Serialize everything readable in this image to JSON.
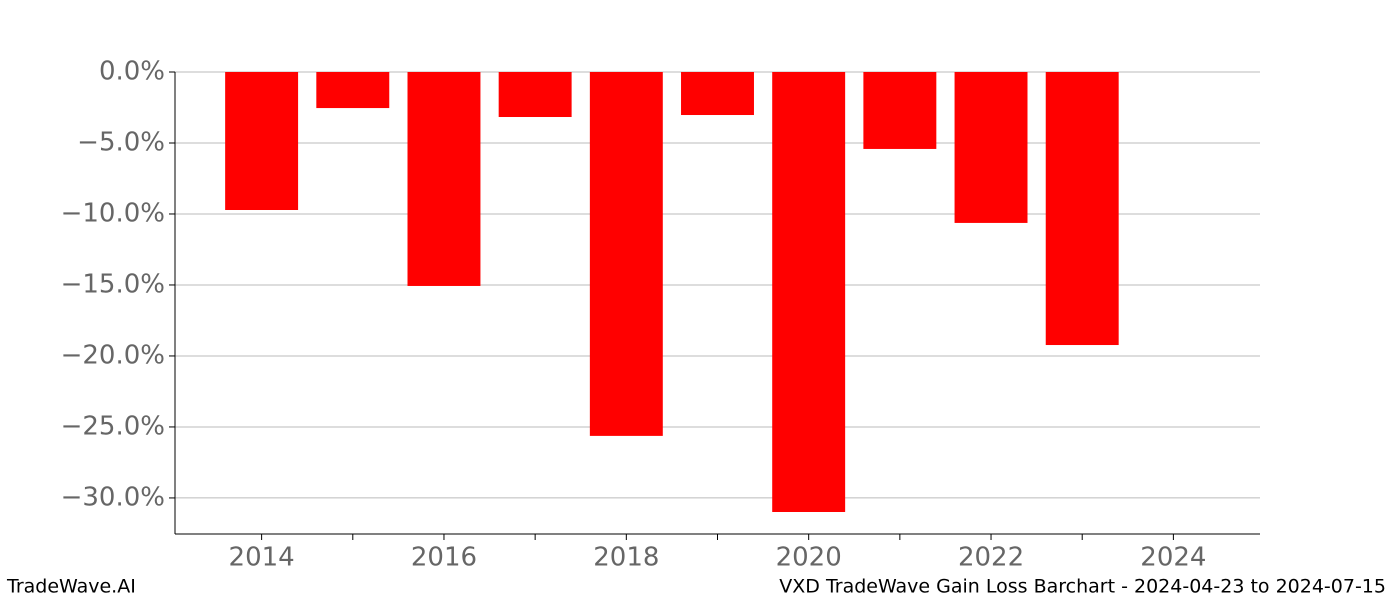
{
  "chart_data": {
    "type": "bar",
    "x": [
      2014,
      2015,
      2016,
      2017,
      2018,
      2019,
      2020,
      2021,
      2022,
      2023
    ],
    "values": [
      -9.72,
      -2.54,
      -15.07,
      -3.17,
      -25.63,
      -3.03,
      -30.99,
      -5.42,
      -10.63,
      -19.23
    ],
    "color": "#ff0000",
    "bar_width": 0.8,
    "xlim": [
      2013.05,
      2024.95
    ],
    "xticks": [
      2014,
      2016,
      2018,
      2020,
      2022,
      2024
    ],
    "xticks_minor": [
      2015,
      2017,
      2019,
      2021,
      2023
    ],
    "ylim": [
      -32.54,
      0
    ],
    "yticks": [
      {
        "value": 0,
        "label": "0.0%"
      },
      {
        "value": -5,
        "label": "−5.0%"
      },
      {
        "value": -10,
        "label": "−10.0%"
      },
      {
        "value": -15,
        "label": "−15.0%"
      },
      {
        "value": -20,
        "label": "−20.0%"
      },
      {
        "value": -25,
        "label": "−25.0%"
      },
      {
        "value": -30,
        "label": "−30.0%"
      }
    ],
    "grid": true
  },
  "footer": {
    "left": "TradeWave.AI",
    "right": "VXD TradeWave Gain Loss Barchart - 2024-04-23 to 2024-07-15"
  }
}
